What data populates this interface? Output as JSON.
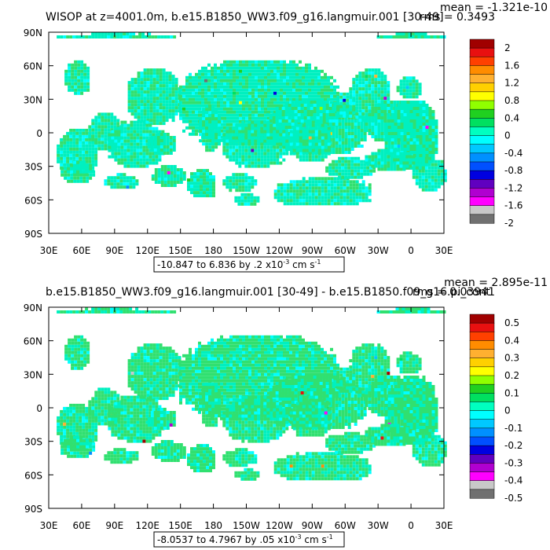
{
  "chart_data": [
    {
      "type": "heatmap",
      "title": "WISOP at z=4001.0m, b.e15.B1850_WW3.f09_g16.langmuir.001 [30-49]",
      "stats": {
        "mean": "mean = -1.321e-10",
        "rms": "rms = 0.3493"
      },
      "x_ticks": [
        "30E",
        "60E",
        "90E",
        "120E",
        "150E",
        "180",
        "150W",
        "120W",
        "90W",
        "60W",
        "30W",
        "0",
        "30E"
      ],
      "y_ticks": [
        "90N",
        "60N",
        "30N",
        "0",
        "30S",
        "60S",
        "90S"
      ],
      "range_label": "-10.847 to 6.836 by .2 x10^-3 cm s^-1",
      "range_text": {
        "a": "-10.847 to 6.836 by .2 x10",
        "exp": "-3",
        "b": " cm s",
        "exp2": "-1"
      },
      "colorbar_labels": [
        "2",
        "1.6",
        "1.2",
        "0.8",
        "0.4",
        "0",
        "-0.4",
        "-0.8",
        "-1.2",
        "-1.6",
        "-2"
      ],
      "colorbar_colors": [
        "#a00000",
        "#e81010",
        "#ff4000",
        "#ff8c00",
        "#ffb030",
        "#ffd000",
        "#ffff00",
        "#90ff00",
        "#20d020",
        "#00e060",
        "#00ffc0",
        "#00ffff",
        "#00c8ff",
        "#0090ff",
        "#0050ff",
        "#0000e0",
        "#6000c0",
        "#b000d0",
        "#ff00ff",
        "#c8c8c8",
        "#707070"
      ],
      "dominant_color": "#00f0c0",
      "secondary_color": "#30e070"
    },
    {
      "type": "heatmap",
      "title": "b.e15.B1850_WW3.f09_g16.langmuir.001 [30-49] - b.e15.B1850.f09_g16.pi_cont",
      "stats": {
        "mean": "mean = 2.895e-11",
        "rms": "rms = 0.03941"
      },
      "x_ticks": [
        "30E",
        "60E",
        "90E",
        "120E",
        "150E",
        "180",
        "150W",
        "120W",
        "90W",
        "60W",
        "30W",
        "0",
        "30E"
      ],
      "y_ticks": [
        "90N",
        "60N",
        "30N",
        "0",
        "30S",
        "60S",
        "90S"
      ],
      "range_label": "-8.0537 to 4.7967 by .05 x10^-3 cm s^-1",
      "range_text": {
        "a": "-8.0537 to 4.7967 by .05 x10",
        "exp": "-3",
        "b": " cm s",
        "exp2": "-1"
      },
      "colorbar_labels": [
        "0.5",
        "0.4",
        "0.3",
        "0.2",
        "0.1",
        "0",
        "-0.1",
        "-0.2",
        "-0.3",
        "-0.4",
        "-0.5"
      ],
      "colorbar_colors": [
        "#a00000",
        "#e81010",
        "#ff4000",
        "#ff8c00",
        "#ffb030",
        "#ffd000",
        "#ffff00",
        "#90ff00",
        "#20d020",
        "#00e060",
        "#00ffc0",
        "#00ffff",
        "#00c8ff",
        "#0090ff",
        "#0050ff",
        "#0000e0",
        "#6000c0",
        "#b000d0",
        "#ff00ff",
        "#c8c8c8",
        "#707070"
      ],
      "dominant_color": "#30e070",
      "secondary_color": "#00f0c0"
    }
  ]
}
